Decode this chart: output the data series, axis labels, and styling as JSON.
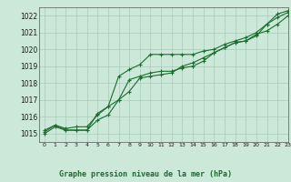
{
  "background_color": "#cce8d8",
  "plot_bg_color": "#cce8d8",
  "grid_color": "#aaccba",
  "line_color": "#1a6e2e",
  "title": "Graphe pression niveau de la mer (hPa)",
  "xlim": [
    -0.5,
    23
  ],
  "ylim": [
    1014.5,
    1022.5
  ],
  "xticks": [
    0,
    1,
    2,
    3,
    4,
    5,
    6,
    7,
    8,
    9,
    10,
    11,
    12,
    13,
    14,
    15,
    16,
    17,
    18,
    19,
    20,
    21,
    22,
    23
  ],
  "yticks": [
    1015,
    1016,
    1017,
    1018,
    1019,
    1020,
    1021,
    1022
  ],
  "series1_x": [
    0,
    1,
    2,
    3,
    4,
    5,
    6,
    7,
    8,
    9,
    10,
    11,
    12,
    13,
    14,
    15,
    16,
    17,
    18,
    19,
    20,
    21,
    22,
    23
  ],
  "series1_y": [
    1015.2,
    1015.5,
    1015.3,
    1015.4,
    1015.4,
    1016.1,
    1016.6,
    1018.4,
    1018.8,
    1019.1,
    1019.7,
    1019.7,
    1019.7,
    1019.7,
    1019.7,
    1019.9,
    1020.0,
    1020.3,
    1020.5,
    1020.7,
    1021.0,
    1021.5,
    1022.1,
    1022.3
  ],
  "series2_x": [
    0,
    1,
    2,
    3,
    4,
    5,
    6,
    7,
    8,
    9,
    10,
    11,
    12,
    13,
    14,
    15,
    16,
    17,
    18,
    19,
    20,
    21,
    22,
    23
  ],
  "series2_y": [
    1015.1,
    1015.5,
    1015.2,
    1015.2,
    1015.2,
    1016.2,
    1016.6,
    1017.0,
    1017.5,
    1018.3,
    1018.4,
    1018.5,
    1018.6,
    1019.0,
    1019.2,
    1019.5,
    1019.8,
    1020.1,
    1020.4,
    1020.5,
    1020.8,
    1021.5,
    1021.9,
    1022.2
  ],
  "series3_x": [
    0,
    1,
    2,
    3,
    4,
    5,
    6,
    7,
    8,
    9,
    10,
    11,
    12,
    13,
    14,
    15,
    16,
    17,
    18,
    19,
    20,
    21,
    22,
    23
  ],
  "series3_y": [
    1015.0,
    1015.4,
    1015.2,
    1015.2,
    1015.2,
    1015.8,
    1016.1,
    1017.0,
    1018.2,
    1018.4,
    1018.6,
    1018.7,
    1018.7,
    1018.9,
    1019.0,
    1019.3,
    1019.8,
    1020.1,
    1020.4,
    1020.5,
    1020.9,
    1021.1,
    1021.5,
    1022.0
  ]
}
